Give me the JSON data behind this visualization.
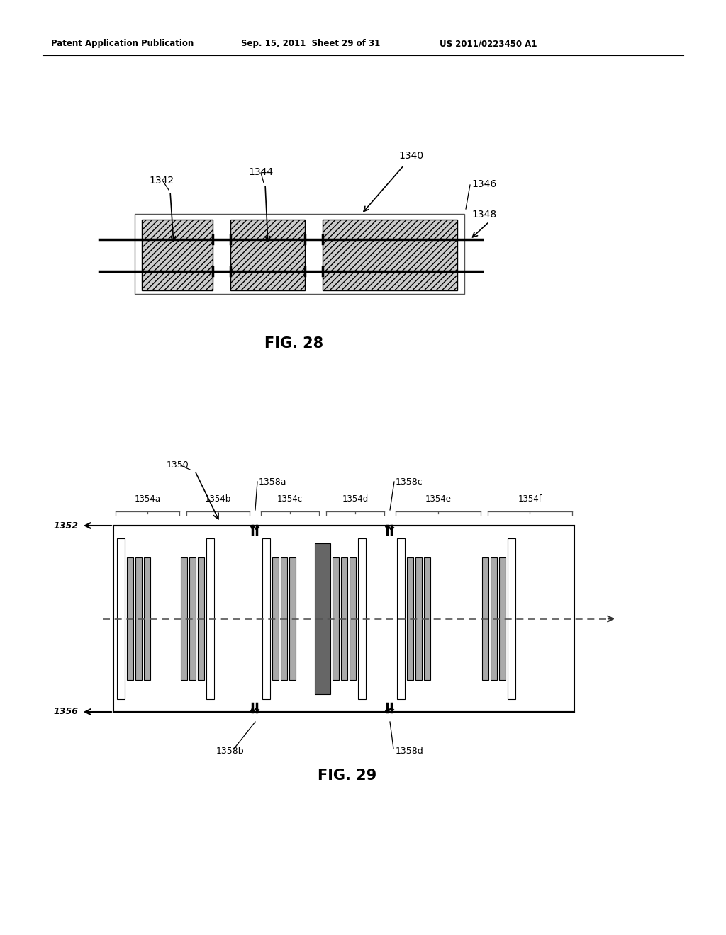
{
  "header_left": "Patent Application Publication",
  "header_mid": "Sep. 15, 2011  Sheet 29 of 31",
  "header_right": "US 2011/0223450 A1",
  "fig28_title": "FIG. 28",
  "fig29_title": "FIG. 29",
  "bg_color": "#ffffff",
  "line_color": "#000000",
  "fig28": {
    "label_1340": "1340",
    "label_1342": "1342",
    "label_1344": "1344",
    "label_1346": "1346",
    "label_1348": "1348"
  },
  "fig29": {
    "label_1350": "1350",
    "label_1352": "1352",
    "label_1354a": "1354a",
    "label_1354b": "1354b",
    "label_1354c": "1354c",
    "label_1354d": "1354d",
    "label_1354e": "1354e",
    "label_1354f": "1354f",
    "label_1356": "1356",
    "label_1358a": "1358a",
    "label_1358b": "1358b",
    "label_1358c": "1358c",
    "label_1358d": "1358d"
  }
}
